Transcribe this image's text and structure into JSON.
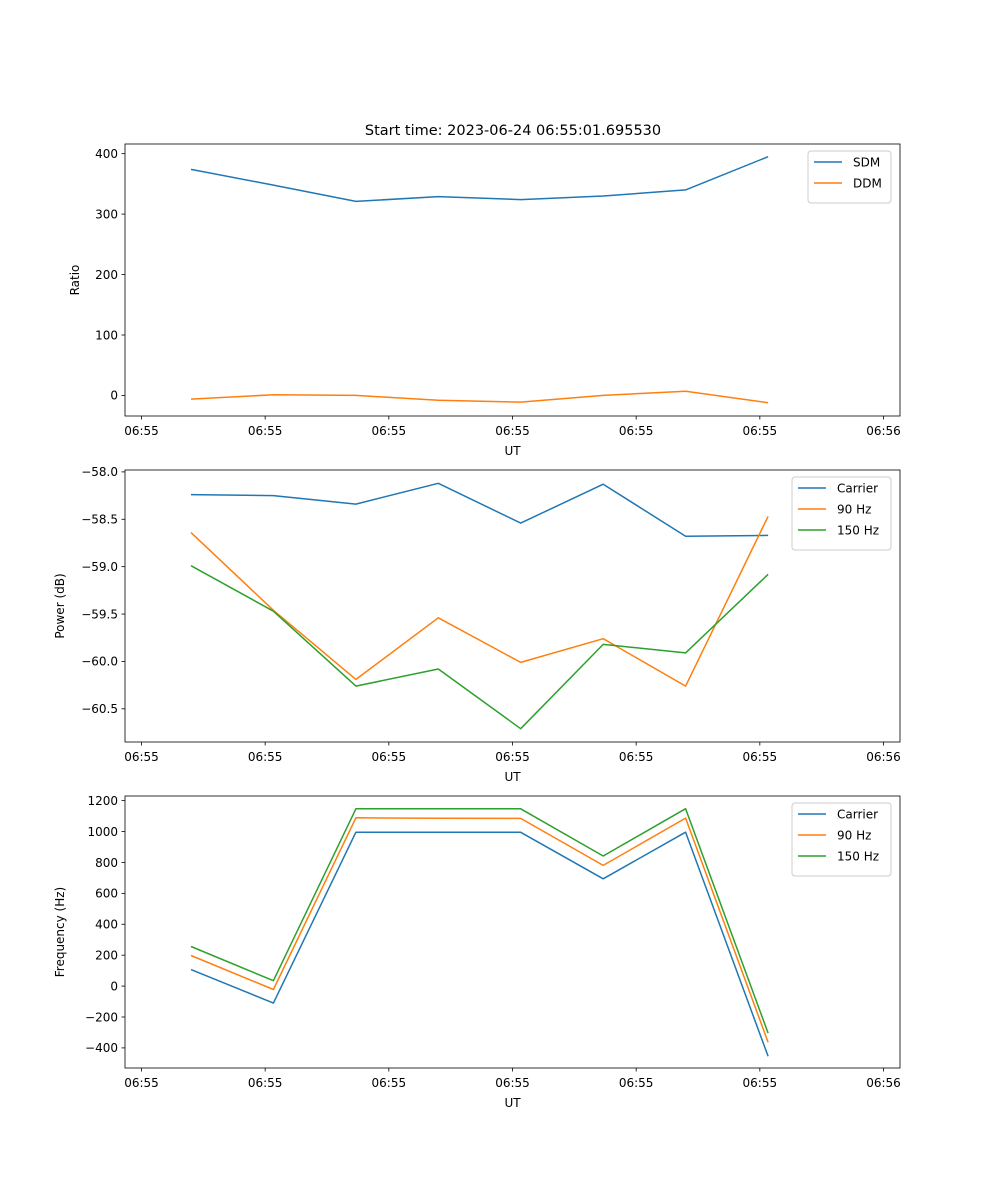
{
  "title": "Start time: 2023-06-24 06:55:01.695530",
  "colors": {
    "blue": "#1f77b4",
    "orange": "#ff7f0e",
    "green": "#2ca02c"
  },
  "chart_data": [
    {
      "type": "line",
      "xlabel": "UT",
      "ylabel": "Ratio",
      "x": [
        1,
        2,
        3,
        4,
        5,
        6,
        7,
        8
      ],
      "xlim": [
        0.2,
        9.6
      ],
      "xticks": [
        0.4,
        1.9,
        3.4,
        4.9,
        6.4,
        7.9,
        9.4
      ],
      "xtick_labels": [
        "06:55",
        "06:55",
        "06:55",
        "06:55",
        "06:55",
        "06:55",
        "06:56"
      ],
      "ylim": [
        -34,
        416
      ],
      "yticks": [
        0,
        100,
        200,
        300,
        400
      ],
      "grid": false,
      "legend": "top-right",
      "series": [
        {
          "name": "SDM",
          "color": "#1f77b4",
          "values": [
            374,
            348,
            321,
            329,
            324,
            330,
            340,
            395
          ]
        },
        {
          "name": "DDM",
          "color": "#ff7f0e",
          "values": [
            -6,
            1,
            0,
            -8,
            -11,
            0,
            7,
            -12
          ]
        }
      ]
    },
    {
      "type": "line",
      "xlabel": "UT",
      "ylabel": "Power (dB)",
      "x": [
        1,
        2,
        3,
        4,
        5,
        6,
        7,
        8
      ],
      "xlim": [
        0.2,
        9.6
      ],
      "xticks": [
        0.4,
        1.9,
        3.4,
        4.9,
        6.4,
        7.9,
        9.4
      ],
      "xtick_labels": [
        "06:55",
        "06:55",
        "06:55",
        "06:55",
        "06:55",
        "06:55",
        "06:56"
      ],
      "ylim": [
        -60.85,
        -57.98
      ],
      "yticks": [
        -60.5,
        -60.0,
        -59.5,
        -59.0,
        -58.5,
        -58.0
      ],
      "ytick_labels": [
        "−60.5",
        "−60.0",
        "−59.5",
        "−59.0",
        "−58.5",
        "−58.0"
      ],
      "grid": false,
      "legend": "top-right",
      "series": [
        {
          "name": "Carrier",
          "color": "#1f77b4",
          "values": [
            -58.24,
            -58.25,
            -58.34,
            -58.12,
            -58.54,
            -58.13,
            -58.68,
            -58.67
          ]
        },
        {
          "name": "90 Hz",
          "color": "#ff7f0e",
          "values": [
            -58.64,
            -59.46,
            -60.19,
            -59.54,
            -60.01,
            -59.76,
            -60.26,
            -58.47
          ]
        },
        {
          "name": "150 Hz",
          "color": "#2ca02c",
          "values": [
            -58.99,
            -59.47,
            -60.26,
            -60.08,
            -60.71,
            -59.82,
            -59.91,
            -59.08
          ]
        }
      ]
    },
    {
      "type": "line",
      "xlabel": "UT",
      "ylabel": "Frequency (Hz)",
      "x": [
        1,
        2,
        3,
        4,
        5,
        6,
        7,
        8
      ],
      "xlim": [
        0.2,
        9.6
      ],
      "xticks": [
        0.4,
        1.9,
        3.4,
        4.9,
        6.4,
        7.9,
        9.4
      ],
      "xtick_labels": [
        "06:55",
        "06:55",
        "06:55",
        "06:55",
        "06:55",
        "06:55",
        "06:56"
      ],
      "ylim": [
        -530,
        1230
      ],
      "yticks": [
        -400,
        -200,
        0,
        200,
        400,
        600,
        800,
        1000,
        1200
      ],
      "ytick_labels": [
        "−400",
        "−200",
        "0",
        "200",
        "400",
        "600",
        "800",
        "1000",
        "1200"
      ],
      "grid": false,
      "legend": "top-right",
      "series": [
        {
          "name": "Carrier",
          "color": "#1f77b4",
          "values": [
            107,
            -110,
            996,
            996,
            995,
            694,
            996,
            -454
          ]
        },
        {
          "name": "90 Hz",
          "color": "#ff7f0e",
          "values": [
            198,
            -22,
            1089,
            1086,
            1085,
            781,
            1087,
            -363
          ]
        },
        {
          "name": "150 Hz",
          "color": "#2ca02c",
          "values": [
            256,
            35,
            1147,
            1147,
            1147,
            842,
            1148,
            -304
          ]
        }
      ]
    }
  ]
}
